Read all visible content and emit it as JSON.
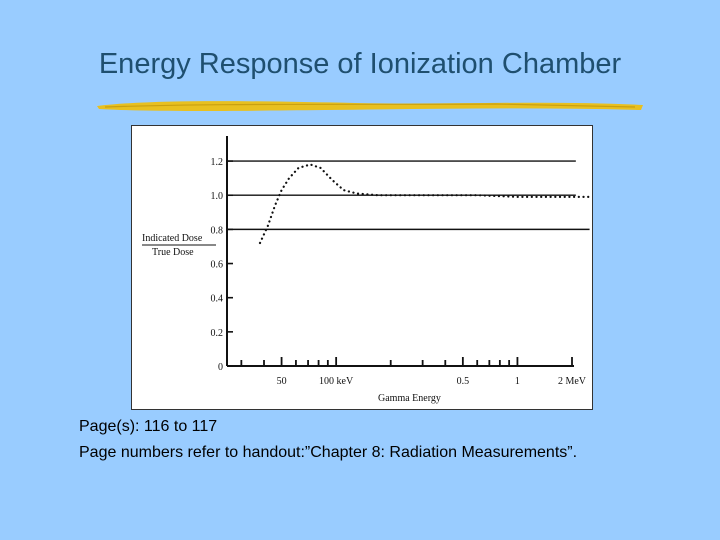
{
  "slide": {
    "title": "Energy Response of Ionization Chamber",
    "caption_line1": "Page(s): 116 to 117",
    "caption_line2": "Page numbers refer to handout:”Chapter 8: Radiation Measurements”."
  },
  "colors": {
    "background": "#99ccff",
    "title": "#1f4f6f",
    "rule": "#e8c020"
  },
  "chart_data": {
    "type": "line",
    "xlabel": "Gamma Energy",
    "ylabel_top": "Indicated Dose",
    "ylabel_bottom": "True Dose",
    "x_scale": "log",
    "x_unit": "keV",
    "xlim": [
      25,
      2000
    ],
    "ylim": [
      0,
      1.3
    ],
    "yticks": [
      {
        "value": 0,
        "label": "0"
      },
      {
        "value": 0.2,
        "label": "0.2"
      },
      {
        "value": 0.4,
        "label": "0.4"
      },
      {
        "value": 0.6,
        "label": "0.6"
      },
      {
        "value": 0.8,
        "label": "0.8"
      },
      {
        "value": 1.0,
        "label": "1.0"
      },
      {
        "value": 1.2,
        "label": "1.2"
      }
    ],
    "xtick_labels": [
      {
        "value": 50,
        "label": "50"
      },
      {
        "value": 100,
        "label": "100 keV"
      },
      {
        "value": 500,
        "label": "0.5"
      },
      {
        "value": 1000,
        "label": "1"
      },
      {
        "value": 2000,
        "label": "2 MeV"
      }
    ],
    "xticks_minor": [
      30,
      40,
      50,
      60,
      70,
      80,
      90,
      100,
      200,
      300,
      400,
      500,
      600,
      700,
      800,
      900,
      1000,
      2000
    ],
    "reference_lines": [
      1.2,
      1.0,
      0.8
    ],
    "series": [
      {
        "style": "dotted",
        "points": [
          [
            38,
            0.72
          ],
          [
            42,
            0.82
          ],
          [
            46,
            0.94
          ],
          [
            50,
            1.03
          ],
          [
            55,
            1.1
          ],
          [
            62,
            1.16
          ],
          [
            72,
            1.18
          ],
          [
            82,
            1.16
          ],
          [
            95,
            1.09
          ],
          [
            110,
            1.03
          ],
          [
            130,
            1.01
          ],
          [
            170,
            1.0
          ],
          [
            300,
            1.0
          ],
          [
            600,
            1.0
          ],
          [
            1000,
            0.99
          ],
          [
            1500,
            0.99
          ],
          [
            2000,
            0.99
          ],
          [
            2500,
            0.99
          ]
        ]
      }
    ]
  }
}
